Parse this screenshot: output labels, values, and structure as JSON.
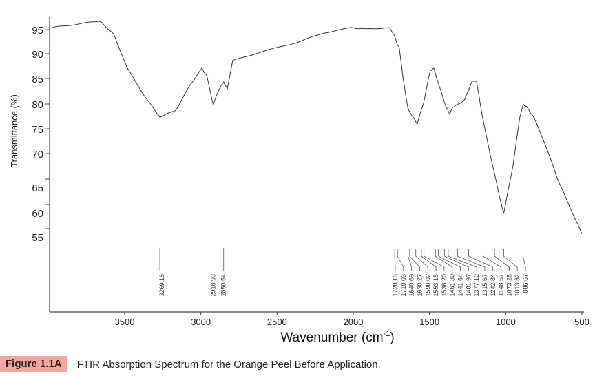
{
  "chart_data": {
    "type": "line",
    "title": "",
    "xlabel": "Wavenumber (cm",
    "xlabel_sup": "-1",
    "xlabel_close": ")",
    "ylabel": "Transmittance (%)",
    "xlim": [
      3990,
      500
    ],
    "ylim": [
      53,
      97
    ],
    "x_ticks": [
      "3500",
      "3000",
      "2500",
      "2000",
      "1500",
      "1000",
      "500"
    ],
    "y_ticks": [
      "95",
      "90",
      "85",
      "80",
      "75",
      "70",
      "65",
      "60",
      "55"
    ],
    "grid": false,
    "series": [
      {
        "name": "Orange Peel Before Application",
        "color": "#333333",
        "points": [
          [
            3979,
            95.4
          ],
          [
            3821,
            96.1
          ],
          [
            3663,
            96.8
          ],
          [
            3640,
            96.1
          ],
          [
            3572,
            94
          ],
          [
            3482,
            87
          ],
          [
            3369,
            81.5
          ],
          [
            3269,
            77.4
          ],
          [
            3166,
            78.7
          ],
          [
            3075,
            83.5
          ],
          [
            2994,
            87
          ],
          [
            2962,
            85.6
          ],
          [
            2919,
            79.9
          ],
          [
            2881,
            82.9
          ],
          [
            2850,
            84.3
          ],
          [
            2827,
            82.9
          ],
          [
            2791,
            88.6
          ],
          [
            2601,
            90.4
          ],
          [
            2375,
            92.3
          ],
          [
            2194,
            94.3
          ],
          [
            2013,
            95.4
          ],
          [
            1922,
            95.1
          ],
          [
            1765,
            95.4
          ],
          [
            1733,
            94
          ],
          [
            1711,
            91.9
          ],
          [
            1698,
            91.2
          ],
          [
            1676,
            85.6
          ],
          [
            1640,
            78.8
          ],
          [
            1608,
            77.4
          ],
          [
            1581,
            76
          ],
          [
            1540,
            80.1
          ],
          [
            1495,
            86.6
          ],
          [
            1472,
            87
          ],
          [
            1436,
            83.5
          ],
          [
            1391,
            79.4
          ],
          [
            1368,
            78
          ],
          [
            1346,
            79.4
          ],
          [
            1314,
            79.9
          ],
          [
            1269,
            80.8
          ],
          [
            1224,
            84.3
          ],
          [
            1192,
            84.6
          ],
          [
            1156,
            78
          ],
          [
            1111,
            71.1
          ],
          [
            1066,
            65
          ],
          [
            1020,
            58.9
          ],
          [
            1013,
            58.2
          ],
          [
            952,
            67.7
          ],
          [
            907,
            77.4
          ],
          [
            885,
            79.9
          ],
          [
            862,
            79.4
          ],
          [
            817,
            77.4
          ],
          [
            749,
            72.5
          ],
          [
            659,
            65
          ],
          [
            591,
            60.3
          ],
          [
            500,
            53.9
          ]
        ]
      }
    ],
    "peak_labels": [
      "3269.16",
      "2918.93",
      "2850.54",
      "1728.13",
      "1710.03",
      "1640.69",
      "1630.27",
      "1590.02",
      "1553.15",
      "1536.20",
      "1461.30",
      "1441.64",
      "1401.97",
      "1377.12",
      "1315.67",
      "1242.84",
      "1148.57",
      "1073.25",
      "1013.32",
      "886.67"
    ]
  },
  "caption": {
    "figure_tag": "Figure 1.1A",
    "text": "FTIR Absorption Spectrum for the Orange Peel Before Application."
  }
}
